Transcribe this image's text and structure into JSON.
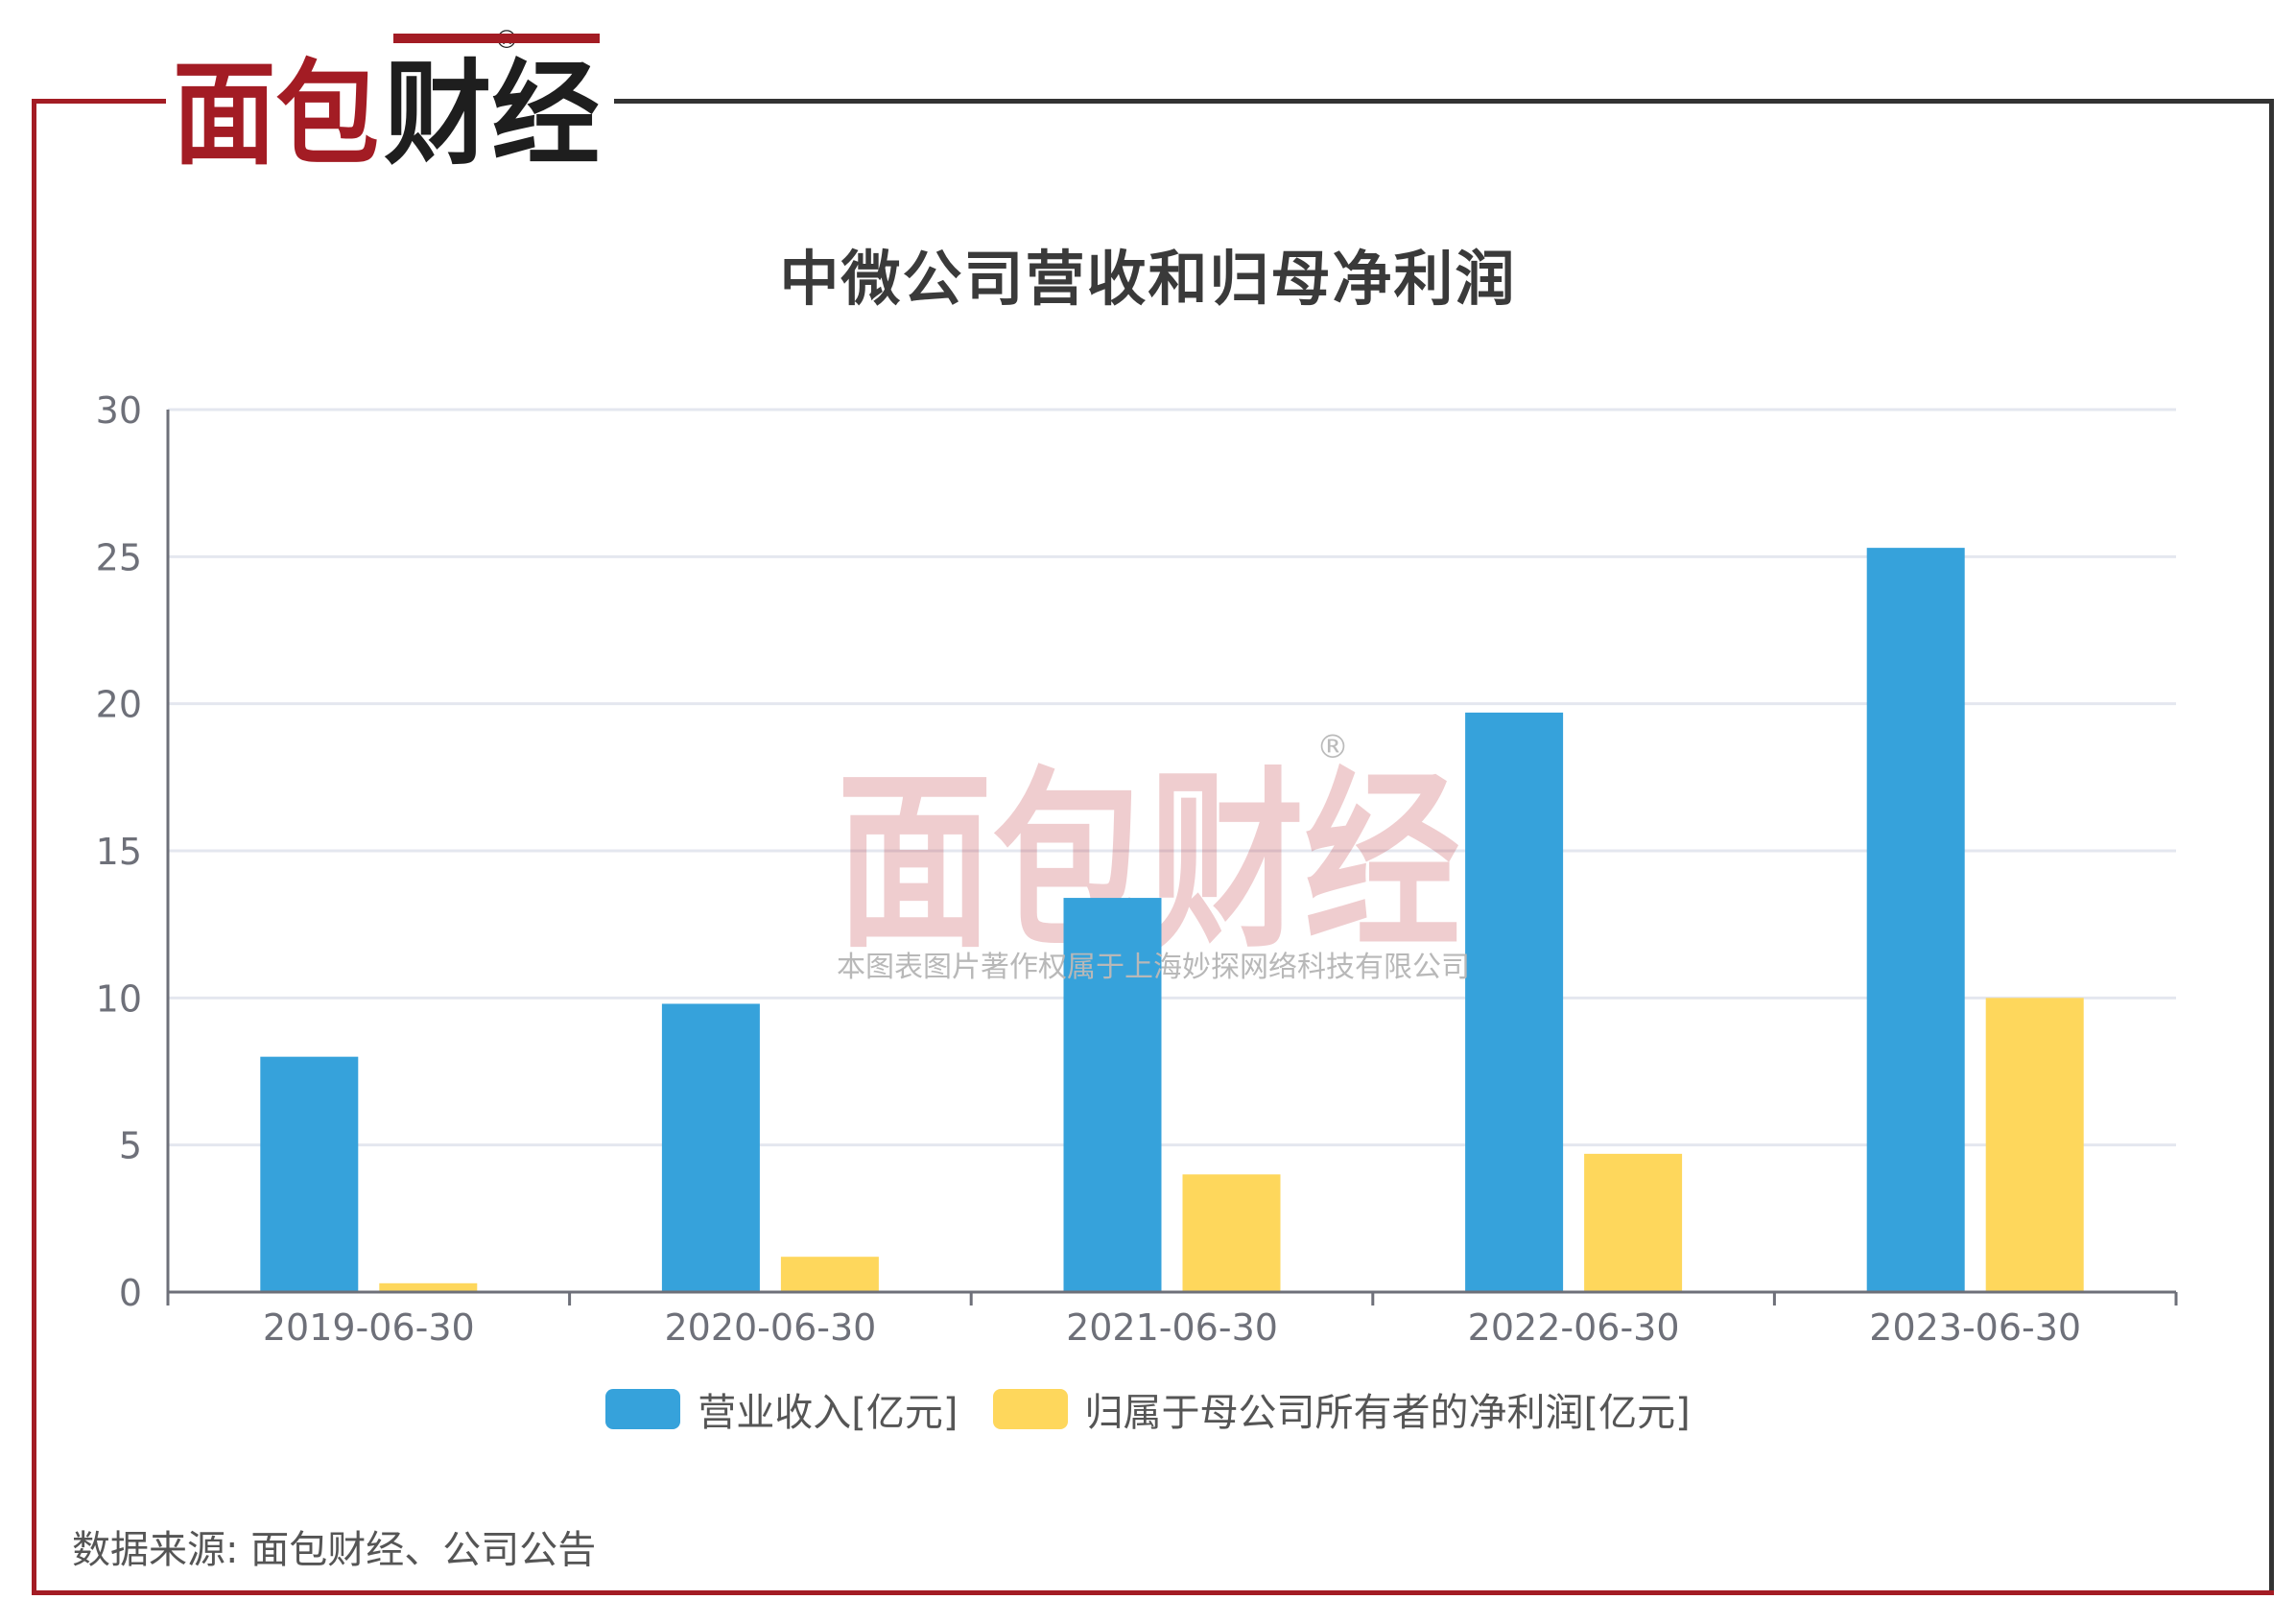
{
  "logo": {
    "text": "面包财经",
    "registered": "®"
  },
  "watermark": {
    "text": "面包财经",
    "registered": "®",
    "subtext": "本图表图片著作权属于上海妙探网络科技有限公司"
  },
  "source": "数据来源: 面包财经、公司公告",
  "colors": {
    "revenue": "#36a2db",
    "net_profit": "#fed75c",
    "frame_red": "#a31c24",
    "frame_dark": "#333333"
  },
  "chart_data": {
    "type": "bar",
    "title": "中微公司营收和归母净利润",
    "categories": [
      "2019-06-30",
      "2020-06-30",
      "2021-06-30",
      "2022-06-30",
      "2023-06-30"
    ],
    "series": [
      {
        "name": "营业收入[亿元]",
        "values": [
          8.0,
          9.8,
          13.4,
          19.7,
          25.3
        ]
      },
      {
        "name": "归属于母公司所有者的净利润[亿元]",
        "values": [
          0.3,
          1.2,
          4.0,
          4.7,
          10.0
        ]
      }
    ],
    "ylim": [
      0,
      30
    ],
    "yticks": [
      0,
      5,
      10,
      15,
      20,
      25,
      30
    ],
    "grid": true,
    "legend_position": "bottom"
  }
}
